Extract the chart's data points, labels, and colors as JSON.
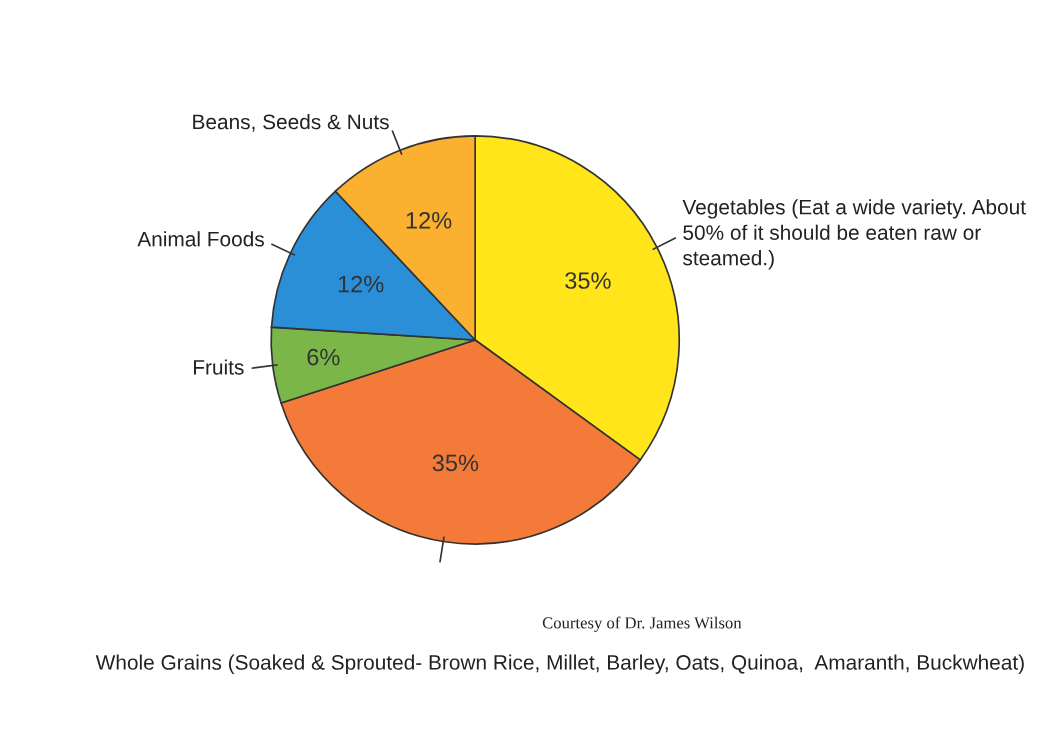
{
  "chart_data": {
    "type": "pie",
    "categories": [
      "Vegetables (Eat a wide variety. About 50% of it should be eaten raw or steamed.)",
      "Whole Grains (Soaked & Sprouted- Brown Rice, Millet, Barley, Oats, Quinoa,  Amaranth, Buckwheat)",
      "Fruits",
      "Animal Foods",
      "Beans, Seeds & Nuts"
    ],
    "values": [
      35,
      35,
      6,
      12,
      12
    ],
    "colors": [
      "#ffe51a",
      "#f47a3a",
      "#7ab648",
      "#2a8fd6",
      "#fbb030"
    ],
    "value_labels": [
      "35%",
      "35%",
      "6%",
      "12%",
      "12%"
    ],
    "legend": false,
    "annotations": [
      "Courtesy of Dr. James Wilson"
    ]
  }
}
